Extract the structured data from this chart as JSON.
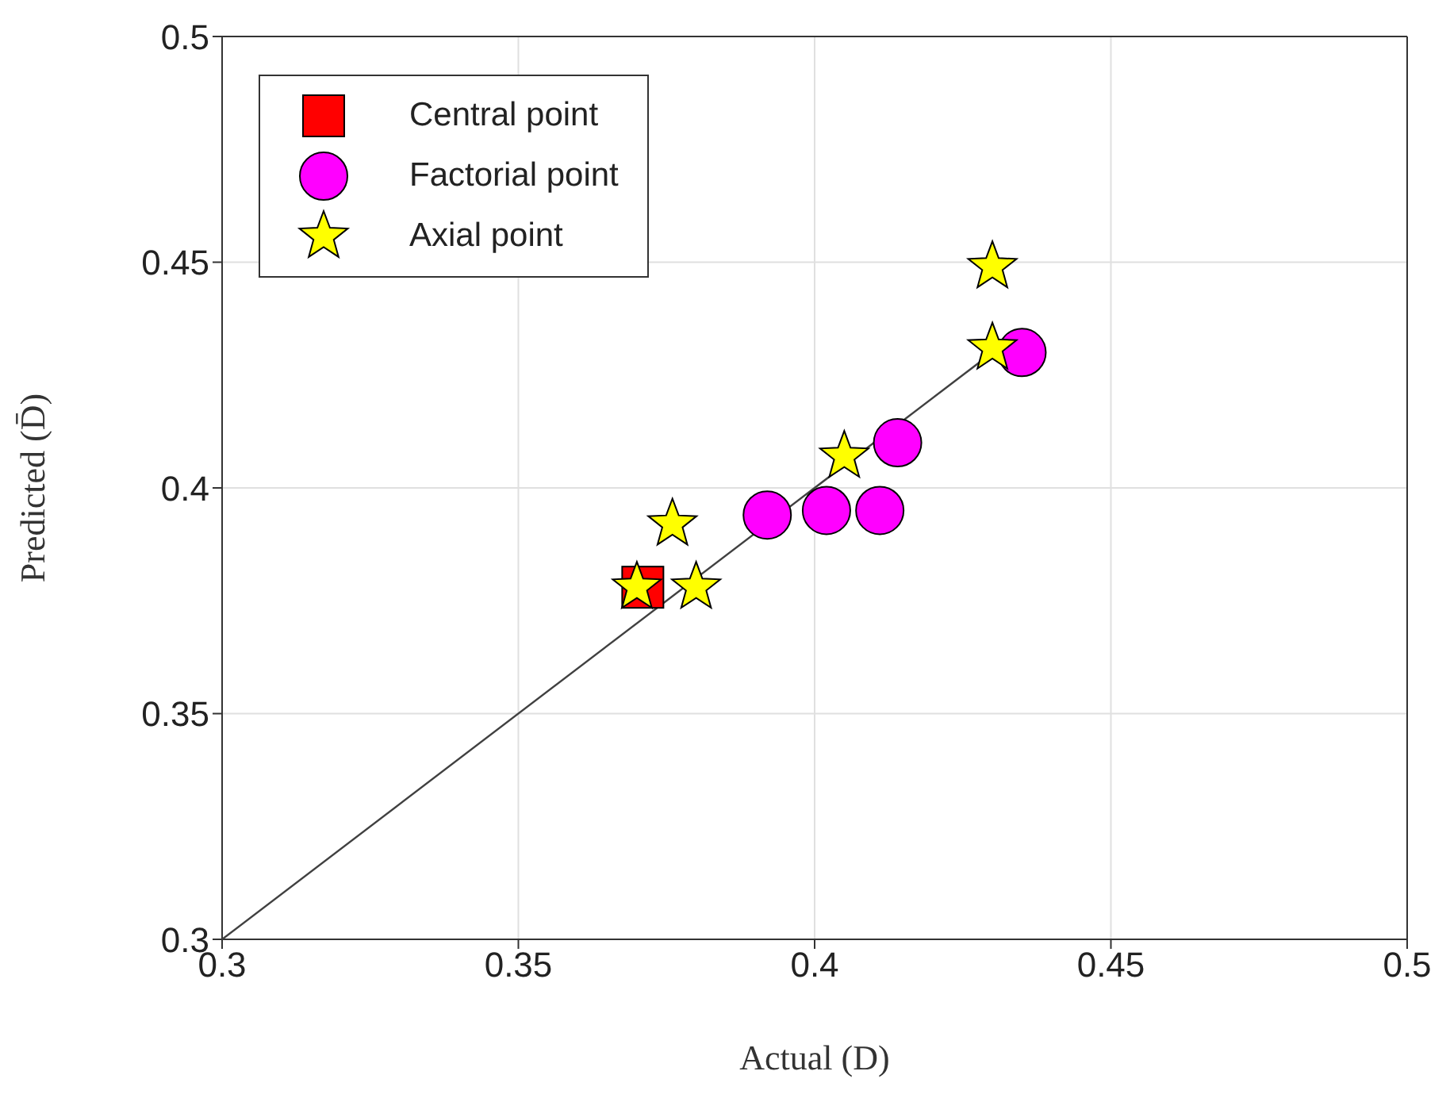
{
  "chart_data": {
    "type": "scatter",
    "xlabel": "Actual (D)",
    "ylabel": "Predicted (D̄)",
    "xlim": [
      0.3,
      0.5
    ],
    "xticks": [
      0.3,
      0.35,
      0.4,
      0.45,
      0.5
    ],
    "ylim": [
      0.3,
      0.5
    ],
    "yticks": [
      0.3,
      0.35,
      0.4,
      0.45,
      0.5
    ],
    "grid": true,
    "legend": "top left",
    "series": [
      {
        "type": "line",
        "color": "#404040",
        "marker": "none",
        "x": [
          0.3,
          0.434
        ],
        "values": [
          0.3,
          0.434
        ]
      },
      {
        "name": "Central point",
        "color": "#ff0000",
        "marker": "square",
        "x": [
          0.371
        ],
        "values": [
          0.378
        ]
      },
      {
        "name": "Factorial point",
        "color": "#ff00ff",
        "marker": "circle",
        "x": [
          0.392,
          0.402,
          0.411,
          0.414,
          0.435
        ],
        "values": [
          0.394,
          0.395,
          0.395,
          0.41,
          0.43
        ]
      },
      {
        "name": "Axial point",
        "color": "#ffff00",
        "marker": "star",
        "x": [
          0.43,
          0.43,
          0.405,
          0.376,
          0.38,
          0.37
        ],
        "values": [
          0.449,
          0.431,
          0.407,
          0.392,
          0.378,
          0.378
        ]
      }
    ]
  }
}
